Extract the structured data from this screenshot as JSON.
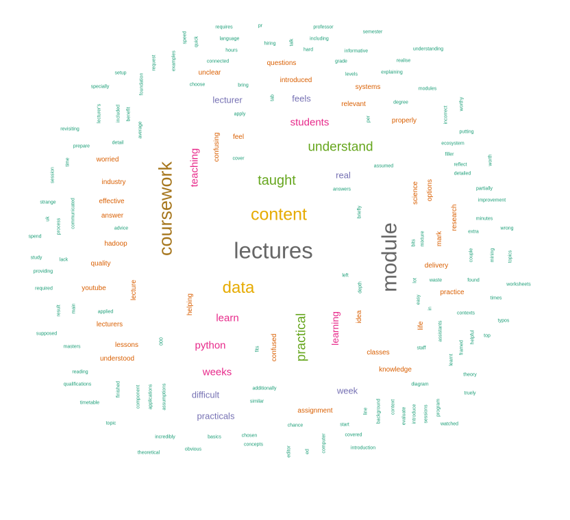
{
  "palette": {
    "gray": "#666666",
    "gold": "#e6ab02",
    "olive": "#a6761d",
    "green": "#66a61e",
    "magenta": "#e7298a",
    "purple": "#7570b3",
    "orange": "#d95f02",
    "teal": "#1b9e77"
  },
  "words": [
    {
      "text": "lectures",
      "color": "gray"
    },
    {
      "text": "module",
      "color": "gray"
    },
    {
      "text": "coursework",
      "color": "olive"
    },
    {
      "text": "content",
      "color": "gold"
    },
    {
      "text": "data",
      "color": "gold"
    },
    {
      "text": "taught",
      "color": "green"
    },
    {
      "text": "understand",
      "color": "green"
    },
    {
      "text": "practical",
      "color": "green"
    },
    {
      "text": "students",
      "color": "magenta"
    },
    {
      "text": "teaching",
      "color": "magenta"
    },
    {
      "text": "learn",
      "color": "magenta"
    },
    {
      "text": "python",
      "color": "magenta"
    },
    {
      "text": "weeks",
      "color": "magenta"
    },
    {
      "text": "learning",
      "color": "magenta"
    },
    {
      "text": "lecturer",
      "color": "purple"
    },
    {
      "text": "feels",
      "color": "purple"
    },
    {
      "text": "real",
      "color": "purple"
    },
    {
      "text": "difficult",
      "color": "purple"
    },
    {
      "text": "practicals",
      "color": "purple"
    },
    {
      "text": "week",
      "color": "purple"
    },
    {
      "text": "questions",
      "color": "orange"
    },
    {
      "text": "unclear",
      "color": "orange"
    },
    {
      "text": "introduced",
      "color": "orange"
    },
    {
      "text": "systems",
      "color": "orange"
    },
    {
      "text": "relevant",
      "color": "orange"
    },
    {
      "text": "properly",
      "color": "orange"
    },
    {
      "text": "feel",
      "color": "orange"
    },
    {
      "text": "confusing",
      "color": "orange"
    },
    {
      "text": "worried",
      "color": "orange"
    },
    {
      "text": "industry",
      "color": "orange"
    },
    {
      "text": "effective",
      "color": "orange"
    },
    {
      "text": "answer",
      "color": "orange"
    },
    {
      "text": "hadoop",
      "color": "orange"
    },
    {
      "text": "quality",
      "color": "orange"
    },
    {
      "text": "youtube",
      "color": "orange"
    },
    {
      "text": "lecture",
      "color": "orange"
    },
    {
      "text": "lecturers",
      "color": "orange"
    },
    {
      "text": "lessons",
      "color": "orange"
    },
    {
      "text": "understood",
      "color": "orange"
    },
    {
      "text": "helping",
      "color": "orange"
    },
    {
      "text": "confused",
      "color": "orange"
    },
    {
      "text": "idea",
      "color": "orange"
    },
    {
      "text": "classes",
      "color": "orange"
    },
    {
      "text": "knowledge",
      "color": "orange"
    },
    {
      "text": "assignment",
      "color": "orange"
    },
    {
      "text": "science",
      "color": "orange"
    },
    {
      "text": "options",
      "color": "orange"
    },
    {
      "text": "research",
      "color": "orange"
    },
    {
      "text": "mark",
      "color": "orange"
    },
    {
      "text": "delivery",
      "color": "orange"
    },
    {
      "text": "practice",
      "color": "orange"
    },
    {
      "text": "life",
      "color": "orange"
    },
    {
      "text": "requires",
      "color": "teal"
    },
    {
      "text": "speed",
      "color": "teal"
    },
    {
      "text": "quick",
      "color": "teal"
    },
    {
      "text": "language",
      "color": "teal"
    },
    {
      "text": "hours",
      "color": "teal"
    },
    {
      "text": "pr",
      "color": "teal"
    },
    {
      "text": "hiring",
      "color": "teal"
    },
    {
      "text": "talk",
      "color": "teal"
    },
    {
      "text": "professor",
      "color": "teal"
    },
    {
      "text": "including",
      "color": "teal"
    },
    {
      "text": "hard",
      "color": "teal"
    },
    {
      "text": "semester",
      "color": "teal"
    },
    {
      "text": "informative",
      "color": "teal"
    },
    {
      "text": "understanding",
      "color": "teal"
    },
    {
      "text": "connected",
      "color": "teal"
    },
    {
      "text": "grade",
      "color": "teal"
    },
    {
      "text": "realise",
      "color": "teal"
    },
    {
      "text": "request",
      "color": "teal"
    },
    {
      "text": "examples",
      "color": "teal"
    },
    {
      "text": "setup",
      "color": "teal"
    },
    {
      "text": "levels",
      "color": "teal"
    },
    {
      "text": "explaining",
      "color": "teal"
    },
    {
      "text": "choose",
      "color": "teal"
    },
    {
      "text": "bring",
      "color": "teal"
    },
    {
      "text": "specially",
      "color": "teal"
    },
    {
      "text": "foundation",
      "color": "teal"
    },
    {
      "text": "tab",
      "color": "teal"
    },
    {
      "text": "modules",
      "color": "teal"
    },
    {
      "text": "degree",
      "color": "teal"
    },
    {
      "text": "worthy",
      "color": "teal"
    },
    {
      "text": "lecturer's",
      "color": "teal"
    },
    {
      "text": "included",
      "color": "teal"
    },
    {
      "text": "benefit",
      "color": "teal"
    },
    {
      "text": "apply",
      "color": "teal"
    },
    {
      "text": "per",
      "color": "teal"
    },
    {
      "text": "incorrect",
      "color": "teal"
    },
    {
      "text": "revisiting",
      "color": "teal"
    },
    {
      "text": "average",
      "color": "teal"
    },
    {
      "text": "putting",
      "color": "teal"
    },
    {
      "text": "prepare",
      "color": "teal"
    },
    {
      "text": "detail",
      "color": "teal"
    },
    {
      "text": "ecosystem",
      "color": "teal"
    },
    {
      "text": "filler",
      "color": "teal"
    },
    {
      "text": "time",
      "color": "teal"
    },
    {
      "text": "cover",
      "color": "teal"
    },
    {
      "text": "assumed",
      "color": "teal"
    },
    {
      "text": "reflect",
      "color": "teal"
    },
    {
      "text": "worth",
      "color": "teal"
    },
    {
      "text": "session",
      "color": "teal"
    },
    {
      "text": "detailed",
      "color": "teal"
    },
    {
      "text": "answers",
      "color": "teal"
    },
    {
      "text": "partially",
      "color": "teal"
    },
    {
      "text": "strange",
      "color": "teal"
    },
    {
      "text": "improvement",
      "color": "teal"
    },
    {
      "text": "uk",
      "color": "teal"
    },
    {
      "text": "process",
      "color": "teal"
    },
    {
      "text": "communicated",
      "color": "teal"
    },
    {
      "text": "briefly",
      "color": "teal"
    },
    {
      "text": "minutes",
      "color": "teal"
    },
    {
      "text": "advice",
      "color": "teal"
    },
    {
      "text": "extra",
      "color": "teal"
    },
    {
      "text": "wrong",
      "color": "teal"
    },
    {
      "text": "spend",
      "color": "teal"
    },
    {
      "text": "bits",
      "color": "teal"
    },
    {
      "text": "mixture",
      "color": "teal"
    },
    {
      "text": "couple",
      "color": "teal"
    },
    {
      "text": "mining",
      "color": "teal"
    },
    {
      "text": "topics",
      "color": "teal"
    },
    {
      "text": "study",
      "color": "teal"
    },
    {
      "text": "lack",
      "color": "teal"
    },
    {
      "text": "providing",
      "color": "teal"
    },
    {
      "text": "left",
      "color": "teal"
    },
    {
      "text": "lot",
      "color": "teal"
    },
    {
      "text": "waste",
      "color": "teal"
    },
    {
      "text": "found",
      "color": "teal"
    },
    {
      "text": "worksheets",
      "color": "teal"
    },
    {
      "text": "required",
      "color": "teal"
    },
    {
      "text": "depth",
      "color": "teal"
    },
    {
      "text": "times",
      "color": "teal"
    },
    {
      "text": "easy",
      "color": "teal"
    },
    {
      "text": "result",
      "color": "teal"
    },
    {
      "text": "main",
      "color": "teal"
    },
    {
      "text": "applied",
      "color": "teal"
    },
    {
      "text": "in",
      "color": "teal"
    },
    {
      "text": "contexts",
      "color": "teal"
    },
    {
      "text": "typos",
      "color": "teal"
    },
    {
      "text": "assistants",
      "color": "teal"
    },
    {
      "text": "supposed",
      "color": "teal"
    },
    {
      "text": "helpful",
      "color": "teal"
    },
    {
      "text": "top",
      "color": "teal"
    },
    {
      "text": "000",
      "color": "teal"
    },
    {
      "text": "masters",
      "color": "teal"
    },
    {
      "text": "fits",
      "color": "teal"
    },
    {
      "text": "framed",
      "color": "teal"
    },
    {
      "text": "staff",
      "color": "teal"
    },
    {
      "text": "learnt",
      "color": "teal"
    },
    {
      "text": "reading",
      "color": "teal"
    },
    {
      "text": "theory",
      "color": "teal"
    },
    {
      "text": "qualifications",
      "color": "teal"
    },
    {
      "text": "finished",
      "color": "teal"
    },
    {
      "text": "additionally",
      "color": "teal"
    },
    {
      "text": "diagram",
      "color": "teal"
    },
    {
      "text": "truely",
      "color": "teal"
    },
    {
      "text": "component",
      "color": "teal"
    },
    {
      "text": "applications",
      "color": "teal"
    },
    {
      "text": "assumptions",
      "color": "teal"
    },
    {
      "text": "timetable",
      "color": "teal"
    },
    {
      "text": "similar",
      "color": "teal"
    },
    {
      "text": "context",
      "color": "teal"
    },
    {
      "text": "background",
      "color": "teal"
    },
    {
      "text": "line",
      "color": "teal"
    },
    {
      "text": "evaluate",
      "color": "teal"
    },
    {
      "text": "introduce",
      "color": "teal"
    },
    {
      "text": "sessions",
      "color": "teal"
    },
    {
      "text": "program",
      "color": "teal"
    },
    {
      "text": "topic",
      "color": "teal"
    },
    {
      "text": "chance",
      "color": "teal"
    },
    {
      "text": "start",
      "color": "teal"
    },
    {
      "text": "covered",
      "color": "teal"
    },
    {
      "text": "watched",
      "color": "teal"
    },
    {
      "text": "incredibly",
      "color": "teal"
    },
    {
      "text": "basics",
      "color": "teal"
    },
    {
      "text": "chosen",
      "color": "teal"
    },
    {
      "text": "concepts",
      "color": "teal"
    },
    {
      "text": "theoretical",
      "color": "teal"
    },
    {
      "text": "obvious",
      "color": "teal"
    },
    {
      "text": "editor",
      "color": "teal"
    },
    {
      "text": "ed",
      "color": "teal"
    },
    {
      "text": "computer",
      "color": "teal"
    },
    {
      "text": "introduction",
      "color": "teal"
    }
  ]
}
